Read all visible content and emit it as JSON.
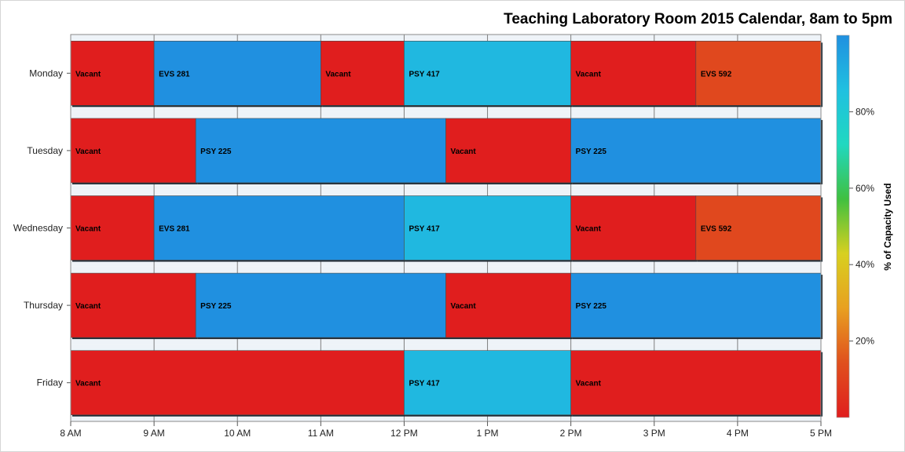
{
  "chart_data": {
    "type": "bar",
    "orientation": "horizontal-timeline",
    "title": "Teaching Laboratory Room 2015 Calendar, 8am to 5pm",
    "xlabel": "",
    "ylabel": "",
    "x_range": [
      8,
      17
    ],
    "x_ticks": [
      {
        "value": 8,
        "label": "8 AM"
      },
      {
        "value": 9,
        "label": "9 AM"
      },
      {
        "value": 10,
        "label": "10 AM"
      },
      {
        "value": 11,
        "label": "11 AM"
      },
      {
        "value": 12,
        "label": "12 PM"
      },
      {
        "value": 13,
        "label": "1 PM"
      },
      {
        "value": 14,
        "label": "2 PM"
      },
      {
        "value": 15,
        "label": "3 PM"
      },
      {
        "value": 16,
        "label": "4 PM"
      },
      {
        "value": 17,
        "label": "5 PM"
      }
    ],
    "categories": [
      "Monday",
      "Tuesday",
      "Wednesday",
      "Thursday",
      "Friday"
    ],
    "rows": [
      {
        "day": "Monday",
        "blocks": [
          {
            "start": 8,
            "end": 9,
            "label": "Vacant",
            "capacity": 0
          },
          {
            "start": 9,
            "end": 11,
            "label": "EVS 281",
            "capacity": 100
          },
          {
            "start": 11,
            "end": 12,
            "label": "Vacant",
            "capacity": 0
          },
          {
            "start": 12,
            "end": 14,
            "label": "PSY 417",
            "capacity": 88
          },
          {
            "start": 14,
            "end": 15.5,
            "label": "Vacant",
            "capacity": 0
          },
          {
            "start": 15.5,
            "end": 17,
            "label": "EVS 592",
            "capacity": 12
          }
        ]
      },
      {
        "day": "Tuesday",
        "blocks": [
          {
            "start": 8,
            "end": 9.5,
            "label": "Vacant",
            "capacity": 0
          },
          {
            "start": 9.5,
            "end": 12.5,
            "label": "PSY 225",
            "capacity": 100
          },
          {
            "start": 12.5,
            "end": 14,
            "label": "Vacant",
            "capacity": 0
          },
          {
            "start": 14,
            "end": 17,
            "label": "PSY 225",
            "capacity": 100
          }
        ]
      },
      {
        "day": "Wednesday",
        "blocks": [
          {
            "start": 8,
            "end": 9,
            "label": "Vacant",
            "capacity": 0
          },
          {
            "start": 9,
            "end": 12,
            "label": "EVS 281",
            "capacity": 100
          },
          {
            "start": 12,
            "end": 14,
            "label": "PSY 417",
            "capacity": 88
          },
          {
            "start": 14,
            "end": 15.5,
            "label": "Vacant",
            "capacity": 0
          },
          {
            "start": 15.5,
            "end": 17,
            "label": "EVS 592",
            "capacity": 12
          }
        ]
      },
      {
        "day": "Thursday",
        "blocks": [
          {
            "start": 8,
            "end": 9.5,
            "label": "Vacant",
            "capacity": 0
          },
          {
            "start": 9.5,
            "end": 12.5,
            "label": "PSY 225",
            "capacity": 100
          },
          {
            "start": 12.5,
            "end": 14,
            "label": "Vacant",
            "capacity": 0
          },
          {
            "start": 14,
            "end": 17,
            "label": "PSY 225",
            "capacity": 100
          }
        ]
      },
      {
        "day": "Friday",
        "blocks": [
          {
            "start": 8,
            "end": 12,
            "label": "Vacant",
            "capacity": 0
          },
          {
            "start": 12,
            "end": 14,
            "label": "PSY 417",
            "capacity": 88
          },
          {
            "start": 14,
            "end": 17,
            "label": "Vacant",
            "capacity": 0
          }
        ]
      }
    ],
    "colorbar": {
      "label": "% of Capacity Used",
      "range": [
        0,
        100
      ],
      "ticks": [
        {
          "value": 20,
          "label": "20%"
        },
        {
          "value": 40,
          "label": "40%"
        },
        {
          "value": 60,
          "label": "60%"
        },
        {
          "value": 80,
          "label": "80%"
        }
      ],
      "colors": [
        "#e01e1e",
        "#e0501e",
        "#e8a020",
        "#d8d020",
        "#40c040",
        "#20d8c0",
        "#20c0e0",
        "#2090e0"
      ]
    },
    "grid": true,
    "legend": "right"
  }
}
